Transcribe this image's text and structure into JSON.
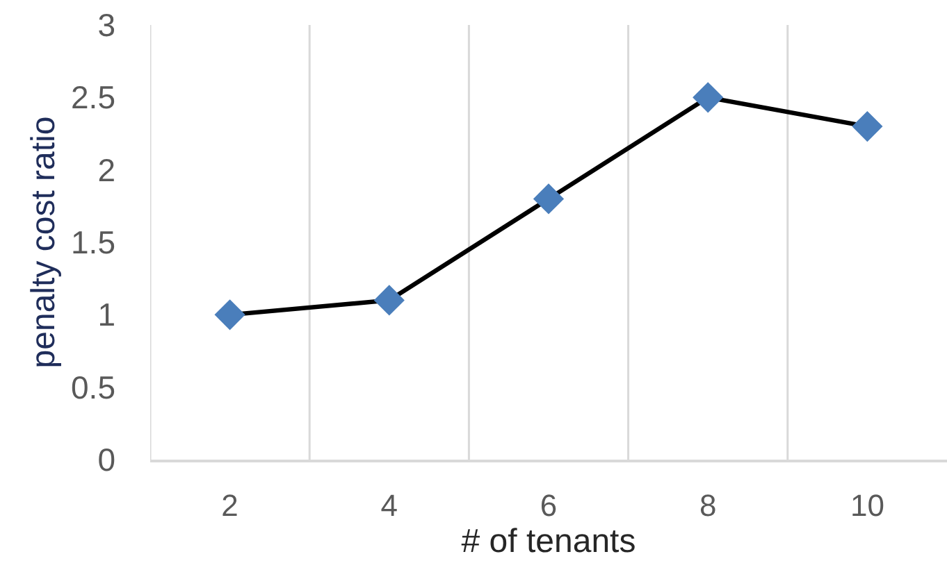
{
  "chart_data": {
    "type": "line",
    "xlabel": "# of tenants",
    "ylabel": "penalty cost ratio",
    "categories": [
      "2",
      "4",
      "6",
      "8",
      "10"
    ],
    "series": [
      {
        "color": "#4a7ebb",
        "values": [
          1.0,
          1.1,
          1.8,
          2.5,
          2.3
        ]
      }
    ],
    "ylim": [
      0,
      3
    ],
    "yticks": [
      0,
      0.5,
      1,
      1.5,
      2,
      2.5,
      3
    ],
    "grid": "x",
    "marker": "diamond",
    "line_style": "solid"
  }
}
